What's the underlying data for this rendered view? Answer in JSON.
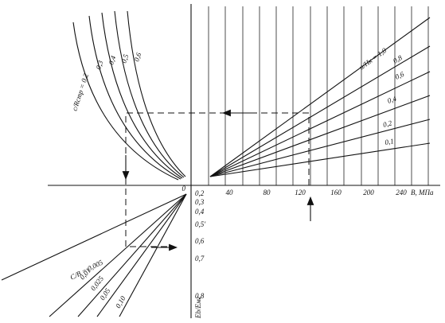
{
  "origin_label": "0",
  "x_axis": {
    "ticks": [
      "40",
      "80",
      "120",
      "160",
      "200",
      "240"
    ],
    "label": "B, МПа"
  },
  "top_left_curves": {
    "labels": [
      "c/Rстр = 0,2",
      "0,3",
      "0,4",
      "0,5",
      "0,6"
    ]
  },
  "top_right_lines": {
    "labels": [
      "u/Hк = 1,0",
      "0,8",
      "0,6",
      "0,4",
      "0,2",
      "0,1"
    ]
  },
  "bottom_right_axis": {
    "ticks": [
      "0,2",
      "0,3",
      "0,4",
      "0,5'",
      "0,6",
      "0,7",
      "0,8"
    ],
    "label": "Eb/Eмг"
  },
  "bottom_left_lines": {
    "labels": [
      "C/B = 0,005",
      "0,01",
      "0,025",
      "0,05",
      "0,10"
    ]
  }
}
